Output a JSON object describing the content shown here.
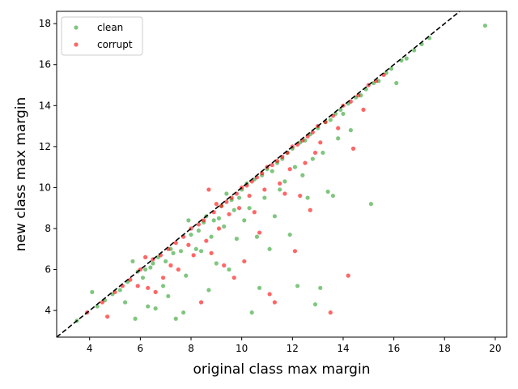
{
  "chart_data": {
    "type": "scatter",
    "title": "",
    "xlabel": "original class max margin",
    "ylabel": "new class max margin",
    "xlim": [
      2.7,
      20.45
    ],
    "ylim": [
      2.7,
      18.6
    ],
    "xticks": [
      4,
      6,
      8,
      10,
      12,
      14,
      16,
      18,
      20
    ],
    "yticks": [
      4,
      6,
      8,
      10,
      12,
      14,
      16,
      18
    ],
    "grid": false,
    "legend": "top-left",
    "reference_line": {
      "style": "dashed",
      "color": "#000000",
      "description": "y = x"
    },
    "series": [
      {
        "name": "clean",
        "color": "#2ca02c",
        "points": [
          [
            3.5,
            3.5
          ],
          [
            4.1,
            4.9
          ],
          [
            4.3,
            4.2
          ],
          [
            4.6,
            4.5
          ],
          [
            4.9,
            4.8
          ],
          [
            5.2,
            5.0
          ],
          [
            5.4,
            4.4
          ],
          [
            5.5,
            5.4
          ],
          [
            5.7,
            6.4
          ],
          [
            5.8,
            3.6
          ],
          [
            5.9,
            5.9
          ],
          [
            6.1,
            5.6
          ],
          [
            6.2,
            6.0
          ],
          [
            6.3,
            4.2
          ],
          [
            6.4,
            6.1
          ],
          [
            6.5,
            6.3
          ],
          [
            6.6,
            4.1
          ],
          [
            6.7,
            6.6
          ],
          [
            6.9,
            5.2
          ],
          [
            7.0,
            6.4
          ],
          [
            7.1,
            4.7
          ],
          [
            7.2,
            7.0
          ],
          [
            7.3,
            6.8
          ],
          [
            7.4,
            3.6
          ],
          [
            7.6,
            6.9
          ],
          [
            7.7,
            3.9
          ],
          [
            7.8,
            5.7
          ],
          [
            7.9,
            8.4
          ],
          [
            8.0,
            7.7
          ],
          [
            8.2,
            7.0
          ],
          [
            8.3,
            7.9
          ],
          [
            8.4,
            6.9
          ],
          [
            8.5,
            8.3
          ],
          [
            8.6,
            8.6
          ],
          [
            8.7,
            5.0
          ],
          [
            8.8,
            7.6
          ],
          [
            8.9,
            8.4
          ],
          [
            9.0,
            6.3
          ],
          [
            9.1,
            8.5
          ],
          [
            9.2,
            9.1
          ],
          [
            9.3,
            8.1
          ],
          [
            9.4,
            9.7
          ],
          [
            9.5,
            6.0
          ],
          [
            9.6,
            9.4
          ],
          [
            9.7,
            8.9
          ],
          [
            9.8,
            7.5
          ],
          [
            9.9,
            9.5
          ],
          [
            10.0,
            9.9
          ],
          [
            10.1,
            8.4
          ],
          [
            10.2,
            10.2
          ],
          [
            10.3,
            9.0
          ],
          [
            10.4,
            3.9
          ],
          [
            10.5,
            10.4
          ],
          [
            10.6,
            7.6
          ],
          [
            10.7,
            5.1
          ],
          [
            10.8,
            10.6
          ],
          [
            10.9,
            9.5
          ],
          [
            11.0,
            10.9
          ],
          [
            11.1,
            7.0
          ],
          [
            11.2,
            10.8
          ],
          [
            11.3,
            8.6
          ],
          [
            11.4,
            11.2
          ],
          [
            11.5,
            9.9
          ],
          [
            11.6,
            11.4
          ],
          [
            11.7,
            10.3
          ],
          [
            11.8,
            11.7
          ],
          [
            11.9,
            7.7
          ],
          [
            12.0,
            11.9
          ],
          [
            12.1,
            11.0
          ],
          [
            12.2,
            5.2
          ],
          [
            12.3,
            12.2
          ],
          [
            12.4,
            10.6
          ],
          [
            12.5,
            12.3
          ],
          [
            12.6,
            9.5
          ],
          [
            12.7,
            12.6
          ],
          [
            12.8,
            11.4
          ],
          [
            12.9,
            4.3
          ],
          [
            13.0,
            12.9
          ],
          [
            13.1,
            5.1
          ],
          [
            13.2,
            11.7
          ],
          [
            13.3,
            13.2
          ],
          [
            13.4,
            9.8
          ],
          [
            13.5,
            13.3
          ],
          [
            13.6,
            9.6
          ],
          [
            13.7,
            13.6
          ],
          [
            13.8,
            12.4
          ],
          [
            13.9,
            13.8
          ],
          [
            14.0,
            13.6
          ],
          [
            14.2,
            14.1
          ],
          [
            14.3,
            12.8
          ],
          [
            14.5,
            14.4
          ],
          [
            14.7,
            14.5
          ],
          [
            14.9,
            14.8
          ],
          [
            15.1,
            9.2
          ],
          [
            15.2,
            15.1
          ],
          [
            15.4,
            15.2
          ],
          [
            15.7,
            15.6
          ],
          [
            15.9,
            15.8
          ],
          [
            16.1,
            15.1
          ],
          [
            16.3,
            16.2
          ],
          [
            16.5,
            16.3
          ],
          [
            16.8,
            16.7
          ],
          [
            17.1,
            17.0
          ],
          [
            17.4,
            17.3
          ],
          [
            19.6,
            17.9
          ]
        ]
      },
      {
        "name": "corrupt",
        "color": "#ff0000",
        "points": [
          [
            3.9,
            3.9
          ],
          [
            4.5,
            4.4
          ],
          [
            4.7,
            3.7
          ],
          [
            5.0,
            4.9
          ],
          [
            5.3,
            5.2
          ],
          [
            5.6,
            5.5
          ],
          [
            5.9,
            5.2
          ],
          [
            6.0,
            6.0
          ],
          [
            6.2,
            6.6
          ],
          [
            6.3,
            5.1
          ],
          [
            6.5,
            6.5
          ],
          [
            6.6,
            4.9
          ],
          [
            6.8,
            6.7
          ],
          [
            6.9,
            5.6
          ],
          [
            7.1,
            7.0
          ],
          [
            7.2,
            6.2
          ],
          [
            7.4,
            7.3
          ],
          [
            7.5,
            6.0
          ],
          [
            7.7,
            7.6
          ],
          [
            7.9,
            7.2
          ],
          [
            8.0,
            8.0
          ],
          [
            8.1,
            6.7
          ],
          [
            8.3,
            8.2
          ],
          [
            8.4,
            4.4
          ],
          [
            8.5,
            8.4
          ],
          [
            8.6,
            7.4
          ],
          [
            8.7,
            9.9
          ],
          [
            8.8,
            6.8
          ],
          [
            8.9,
            8.8
          ],
          [
            9.0,
            9.2
          ],
          [
            9.1,
            8.0
          ],
          [
            9.2,
            9.1
          ],
          [
            9.3,
            6.2
          ],
          [
            9.4,
            9.3
          ],
          [
            9.5,
            8.7
          ],
          [
            9.6,
            9.5
          ],
          [
            9.7,
            5.6
          ],
          [
            9.8,
            9.7
          ],
          [
            9.9,
            9.0
          ],
          [
            10.0,
            10.0
          ],
          [
            10.1,
            6.4
          ],
          [
            10.2,
            10.1
          ],
          [
            10.3,
            9.6
          ],
          [
            10.4,
            10.3
          ],
          [
            10.5,
            8.8
          ],
          [
            10.6,
            10.5
          ],
          [
            10.7,
            7.8
          ],
          [
            10.8,
            10.7
          ],
          [
            10.9,
            9.9
          ],
          [
            11.0,
            11.0
          ],
          [
            11.1,
            4.8
          ],
          [
            11.2,
            11.1
          ],
          [
            11.3,
            4.4
          ],
          [
            11.4,
            11.3
          ],
          [
            11.5,
            10.2
          ],
          [
            11.6,
            11.5
          ],
          [
            11.7,
            9.7
          ],
          [
            11.8,
            11.7
          ],
          [
            11.9,
            10.9
          ],
          [
            12.0,
            12.0
          ],
          [
            12.1,
            6.9
          ],
          [
            12.2,
            12.1
          ],
          [
            12.3,
            9.6
          ],
          [
            12.4,
            12.3
          ],
          [
            12.5,
            11.2
          ],
          [
            12.6,
            12.5
          ],
          [
            12.7,
            8.9
          ],
          [
            12.8,
            12.7
          ],
          [
            12.9,
            11.7
          ],
          [
            13.0,
            13.0
          ],
          [
            13.1,
            12.2
          ],
          [
            13.3,
            13.2
          ],
          [
            13.5,
            3.9
          ],
          [
            13.6,
            13.5
          ],
          [
            13.8,
            12.9
          ],
          [
            14.0,
            14.0
          ],
          [
            14.2,
            5.7
          ],
          [
            14.3,
            14.2
          ],
          [
            14.4,
            11.9
          ],
          [
            14.6,
            14.5
          ],
          [
            14.8,
            13.8
          ],
          [
            15.0,
            15.0
          ],
          [
            15.3,
            15.2
          ],
          [
            15.6,
            15.5
          ]
        ]
      }
    ]
  }
}
